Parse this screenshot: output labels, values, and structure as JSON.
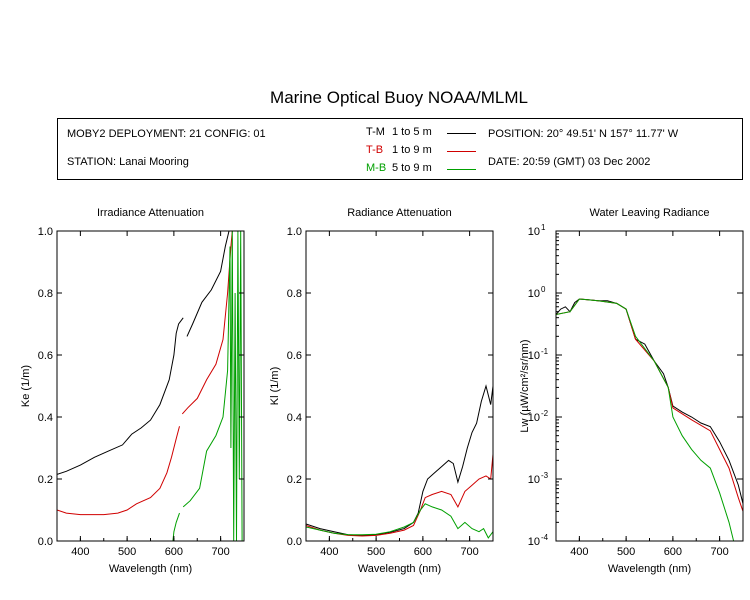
{
  "title": "Marine Optical Buoy NOAA/MLML",
  "info": {
    "deployment": "MOBY2 DEPLOYMENT: 21 CONFIG: 01",
    "station": "STATION: Lanai Mooring",
    "position": "POSITION: 20° 49.51' N   157° 11.77' W",
    "date": "DATE: 20:59 (GMT) 03 Dec 2002"
  },
  "legend": [
    {
      "code": "T-M",
      "range": "1 to 5  m",
      "color": "#000000"
    },
    {
      "code": "T-B",
      "range": "1 to 9  m",
      "color": "#d00000"
    },
    {
      "code": "M-B",
      "range": "5 to 9  m",
      "color": "#00a000"
    }
  ],
  "chart_data": [
    {
      "type": "line",
      "title": "Irradiance Attenuation",
      "xlabel": "Wavelength (nm)",
      "ylabel": "Ke  (1/m)",
      "xlim": [
        350,
        750
      ],
      "ylim": [
        0,
        1.0
      ],
      "xticks": [
        400,
        500,
        600,
        700
      ],
      "yticks": [
        "0.0",
        "0.2",
        "0.4",
        "0.6",
        "0.8",
        "1.0"
      ],
      "series": [
        {
          "name": "T-M",
          "color": "#000000",
          "segments": [
            [
              [
                350,
                0.215
              ],
              [
                370,
                0.225
              ],
              [
                400,
                0.245
              ],
              [
                430,
                0.27
              ],
              [
                460,
                0.29
              ],
              [
                490,
                0.31
              ],
              [
                510,
                0.345
              ],
              [
                530,
                0.365
              ],
              [
                550,
                0.39
              ],
              [
                570,
                0.44
              ],
              [
                590,
                0.52
              ],
              [
                600,
                0.6
              ],
              [
                605,
                0.67
              ],
              [
                610,
                0.7
              ],
              [
                620,
                0.72
              ]
            ],
            [
              [
                628,
                0.66
              ],
              [
                640,
                0.7
              ],
              [
                660,
                0.77
              ],
              [
                680,
                0.81
              ],
              [
                700,
                0.87
              ],
              [
                710,
                0.95
              ],
              [
                718,
                1.0
              ]
            ]
          ]
        },
        {
          "name": "T-B",
          "color": "#d00000",
          "segments": [
            [
              [
                350,
                0.1
              ],
              [
                370,
                0.09
              ],
              [
                400,
                0.085
              ],
              [
                450,
                0.085
              ],
              [
                480,
                0.09
              ],
              [
                500,
                0.1
              ],
              [
                520,
                0.12
              ],
              [
                550,
                0.14
              ],
              [
                570,
                0.17
              ],
              [
                585,
                0.22
              ],
              [
                595,
                0.27
              ],
              [
                605,
                0.33
              ],
              [
                612,
                0.37
              ]
            ],
            [
              [
                618,
                0.41
              ],
              [
                630,
                0.43
              ],
              [
                650,
                0.46
              ],
              [
                670,
                0.52
              ],
              [
                690,
                0.57
              ],
              [
                705,
                0.65
              ],
              [
                715,
                0.8
              ],
              [
                722,
                0.95
              ],
              [
                725,
                1.0
              ]
            ]
          ]
        },
        {
          "name": "M-B",
          "color": "#00a000",
          "segments": [
            [
              [
                598,
                0.0
              ],
              [
                600,
                0.03
              ],
              [
                605,
                0.06
              ],
              [
                612,
                0.09
              ]
            ],
            [
              [
                620,
                0.11
              ],
              [
                635,
                0.13
              ],
              [
                655,
                0.17
              ],
              [
                670,
                0.29
              ],
              [
                690,
                0.34
              ],
              [
                705,
                0.4
              ],
              [
                715,
                0.55
              ],
              [
                720,
                0.95
              ],
              [
                722,
                0.3
              ],
              [
                725,
                1.0
              ],
              [
                728,
                0.0
              ],
              [
                731,
                0.8
              ],
              [
                734,
                0.0
              ],
              [
                737,
                1.0
              ],
              [
                740,
                0.2
              ],
              [
                743,
                1.0
              ],
              [
                746,
                0.0
              ]
            ]
          ]
        }
      ]
    },
    {
      "type": "line",
      "title": "Radiance Attenuation",
      "xlabel": "Wavelength (nm)",
      "ylabel": "Kl  (1/m)",
      "xlim": [
        350,
        750
      ],
      "ylim": [
        0,
        1.0
      ],
      "xticks": [
        400,
        500,
        600,
        700
      ],
      "yticks": [
        "0.0",
        "0.2",
        "0.4",
        "0.6",
        "0.8",
        "1.0"
      ],
      "series": [
        {
          "name": "T-M",
          "color": "#000000",
          "segments": [
            [
              [
                350,
                0.055
              ],
              [
                380,
                0.04
              ],
              [
                410,
                0.03
              ],
              [
                440,
                0.02
              ],
              [
                470,
                0.018
              ],
              [
                500,
                0.02
              ],
              [
                530,
                0.028
              ],
              [
                560,
                0.04
              ],
              [
                580,
                0.06
              ],
              [
                590,
                0.09
              ],
              [
                600,
                0.16
              ],
              [
                610,
                0.2
              ],
              [
                625,
                0.22
              ],
              [
                640,
                0.24
              ],
              [
                655,
                0.26
              ],
              [
                665,
                0.25
              ],
              [
                675,
                0.19
              ],
              [
                685,
                0.24
              ],
              [
                695,
                0.3
              ],
              [
                705,
                0.35
              ],
              [
                715,
                0.38
              ],
              [
                725,
                0.45
              ],
              [
                735,
                0.5
              ],
              [
                745,
                0.44
              ],
              [
                750,
                0.5
              ]
            ]
          ]
        },
        {
          "name": "T-B",
          "color": "#d00000",
          "segments": [
            [
              [
                350,
                0.05
              ],
              [
                380,
                0.035
              ],
              [
                410,
                0.025
              ],
              [
                440,
                0.018
              ],
              [
                470,
                0.016
              ],
              [
                500,
                0.018
              ],
              [
                530,
                0.025
              ],
              [
                560,
                0.035
              ],
              [
                580,
                0.05
              ],
              [
                595,
                0.1
              ],
              [
                605,
                0.14
              ],
              [
                620,
                0.15
              ],
              [
                640,
                0.16
              ],
              [
                660,
                0.15
              ],
              [
                675,
                0.11
              ],
              [
                690,
                0.16
              ],
              [
                705,
                0.18
              ],
              [
                720,
                0.2
              ],
              [
                735,
                0.21
              ],
              [
                745,
                0.2
              ],
              [
                750,
                0.28
              ]
            ]
          ]
        },
        {
          "name": "M-B",
          "color": "#00a000",
          "segments": [
            [
              [
                350,
                0.045
              ],
              [
                380,
                0.035
              ],
              [
                410,
                0.025
              ],
              [
                440,
                0.02
              ],
              [
                470,
                0.02
              ],
              [
                500,
                0.022
              ],
              [
                530,
                0.03
              ],
              [
                560,
                0.045
              ],
              [
                580,
                0.06
              ],
              [
                595,
                0.1
              ],
              [
                605,
                0.12
              ],
              [
                620,
                0.11
              ],
              [
                640,
                0.1
              ],
              [
                660,
                0.08
              ],
              [
                675,
                0.04
              ],
              [
                690,
                0.06
              ],
              [
                705,
                0.04
              ],
              [
                720,
                0.03
              ],
              [
                730,
                0.04
              ],
              [
                740,
                0.01
              ],
              [
                750,
                0.03
              ]
            ]
          ]
        }
      ]
    },
    {
      "type": "line",
      "title": "Water Leaving Radiance",
      "xlabel": "Wavelength (nm)",
      "ylabel": "Lw  (µW/cm²/sr/nm)",
      "yscale": "log",
      "xlim": [
        350,
        750
      ],
      "ylim": [
        0.0001,
        10
      ],
      "xticks": [
        400,
        500,
        600,
        700
      ],
      "yticks": [
        {
          "base": "10",
          "exp": "1",
          "value": 10
        },
        {
          "base": "10",
          "exp": "0",
          "value": 1
        },
        {
          "base": "10",
          "exp": "-1",
          "value": 0.1
        },
        {
          "base": "10",
          "exp": "-2",
          "value": 0.01
        },
        {
          "base": "10",
          "exp": "-3",
          "value": 0.001
        },
        {
          "base": "10",
          "exp": "-4",
          "value": 0.0001
        }
      ],
      "series": [
        {
          "name": "T-M",
          "color": "#000000",
          "segments": [
            [
              [
                350,
                0.45
              ],
              [
                360,
                0.55
              ],
              [
                370,
                0.6
              ],
              [
                380,
                0.5
              ],
              [
                390,
                0.7
              ],
              [
                400,
                0.8
              ],
              [
                420,
                0.78
              ],
              [
                440,
                0.75
              ],
              [
                460,
                0.75
              ],
              [
                480,
                0.68
              ],
              [
                500,
                0.55
              ],
              [
                520,
                0.18
              ],
              [
                540,
                0.15
              ],
              [
                560,
                0.08
              ],
              [
                580,
                0.05
              ],
              [
                590,
                0.03
              ],
              [
                600,
                0.015
              ],
              [
                620,
                0.012
              ],
              [
                640,
                0.01
              ],
              [
                660,
                0.008
              ],
              [
                680,
                0.007
              ],
              [
                700,
                0.004
              ],
              [
                720,
                0.002
              ],
              [
                740,
                0.0008
              ],
              [
                750,
                0.0004
              ]
            ]
          ]
        },
        {
          "name": "T-B",
          "color": "#d00000",
          "segments": [
            [
              [
                350,
                0.45
              ],
              [
                380,
                0.5
              ],
              [
                400,
                0.8
              ],
              [
                440,
                0.75
              ],
              [
                480,
                0.68
              ],
              [
                500,
                0.55
              ],
              [
                520,
                0.18
              ],
              [
                560,
                0.08
              ],
              [
                590,
                0.03
              ],
              [
                600,
                0.014
              ],
              [
                640,
                0.009
              ],
              [
                680,
                0.006
              ],
              [
                700,
                0.003
              ],
              [
                720,
                0.0015
              ],
              [
                740,
                0.0005
              ],
              [
                750,
                0.0003
              ]
            ]
          ]
        },
        {
          "name": "M-B",
          "color": "#00a000",
          "segments": [
            [
              [
                350,
                0.45
              ],
              [
                380,
                0.5
              ],
              [
                400,
                0.8
              ],
              [
                440,
                0.75
              ],
              [
                480,
                0.68
              ],
              [
                500,
                0.55
              ],
              [
                520,
                0.2
              ],
              [
                560,
                0.08
              ],
              [
                590,
                0.03
              ],
              [
                600,
                0.01
              ],
              [
                620,
                0.005
              ],
              [
                640,
                0.003
              ],
              [
                660,
                0.002
              ],
              [
                680,
                0.0015
              ],
              [
                700,
                0.0006
              ],
              [
                720,
                0.0002
              ],
              [
                730,
                0.0001
              ]
            ]
          ]
        }
      ]
    }
  ]
}
